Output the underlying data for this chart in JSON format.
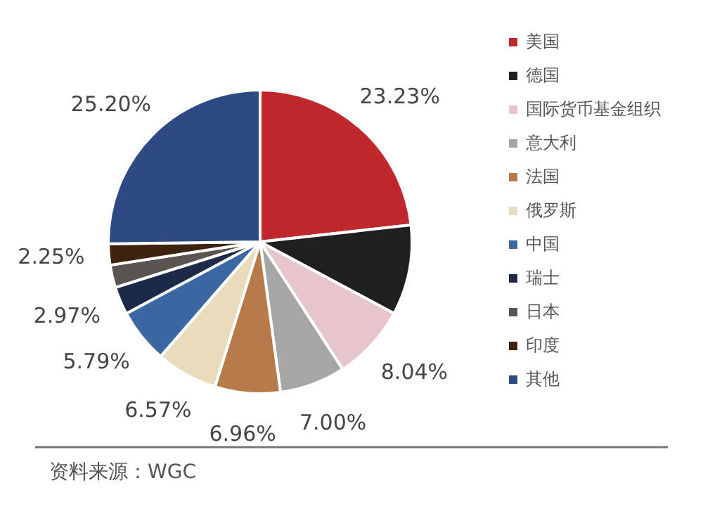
{
  "chart_data": {
    "type": "pie",
    "categories": [
      "美国",
      "德国",
      "国际货币基金组织",
      "意大利",
      "法国",
      "俄罗斯",
      "中国",
      "瑞士",
      "日本",
      "印度",
      "其他"
    ],
    "values": [
      23.23,
      9.58,
      8.04,
      7.0,
      6.96,
      6.57,
      5.79,
      2.97,
      2.41,
      2.25,
      25.2
    ],
    "value_labels": [
      "23.23%",
      null,
      "8.04%",
      "7.00%",
      "6.96%",
      "6.57%",
      "5.79%",
      "2.97%",
      null,
      "2.25%",
      "25.20%"
    ],
    "colors": [
      "#c0282d",
      "#1f1f22",
      "#e6c6ca",
      "#a6a6a6",
      "#b87a48",
      "#e8dcbc",
      "#3b68a2",
      "#1c2a48",
      "#5a5550",
      "#3e2410",
      "#2e4a82"
    ],
    "legend": "right",
    "annotations": [
      "资料来源：WGC"
    ]
  }
}
